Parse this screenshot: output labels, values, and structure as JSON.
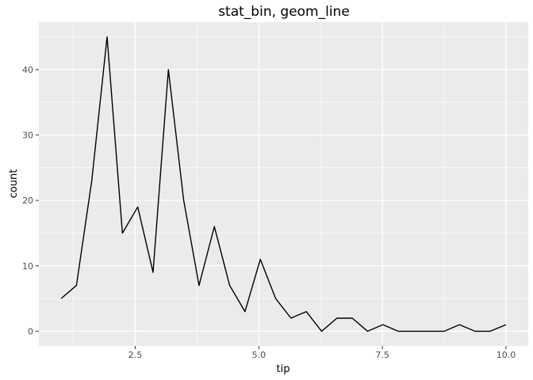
{
  "chart_data": {
    "type": "line",
    "title": "stat_bin, geom_line",
    "xlabel": "tip",
    "ylabel": "count",
    "xlim": [
      0.55,
      10.45
    ],
    "ylim": [
      -2.25,
      47.25
    ],
    "x_ticks": [
      2.5,
      5.0,
      7.5,
      10.0
    ],
    "x_tick_labels": [
      "2.5",
      "5.0",
      "7.5",
      "10.0"
    ],
    "y_ticks": [
      0,
      10,
      20,
      30,
      40
    ],
    "y_tick_labels": [
      "0",
      "10",
      "20",
      "30",
      "40"
    ],
    "grid": true,
    "legend": "none",
    "colors": {
      "panel": "#ebebeb",
      "grid": "#ffffff",
      "line": "#000000"
    },
    "series": [
      {
        "x": [
          1.0,
          1.31,
          1.62,
          1.93,
          2.24,
          2.55,
          2.86,
          3.17,
          3.48,
          3.79,
          4.1,
          4.41,
          4.72,
          5.03,
          5.34,
          5.65,
          5.96,
          6.27,
          6.58,
          6.89,
          7.2,
          7.51,
          7.82,
          8.13,
          8.44,
          8.75,
          9.06,
          9.37,
          9.68,
          10.0
        ],
        "y": [
          5,
          7,
          23,
          45,
          15,
          19,
          9,
          40,
          20,
          7,
          16,
          7,
          3,
          11,
          5,
          2,
          3,
          0,
          2,
          2,
          0,
          1,
          0,
          0,
          0,
          0,
          1,
          0,
          0,
          1
        ]
      }
    ]
  }
}
